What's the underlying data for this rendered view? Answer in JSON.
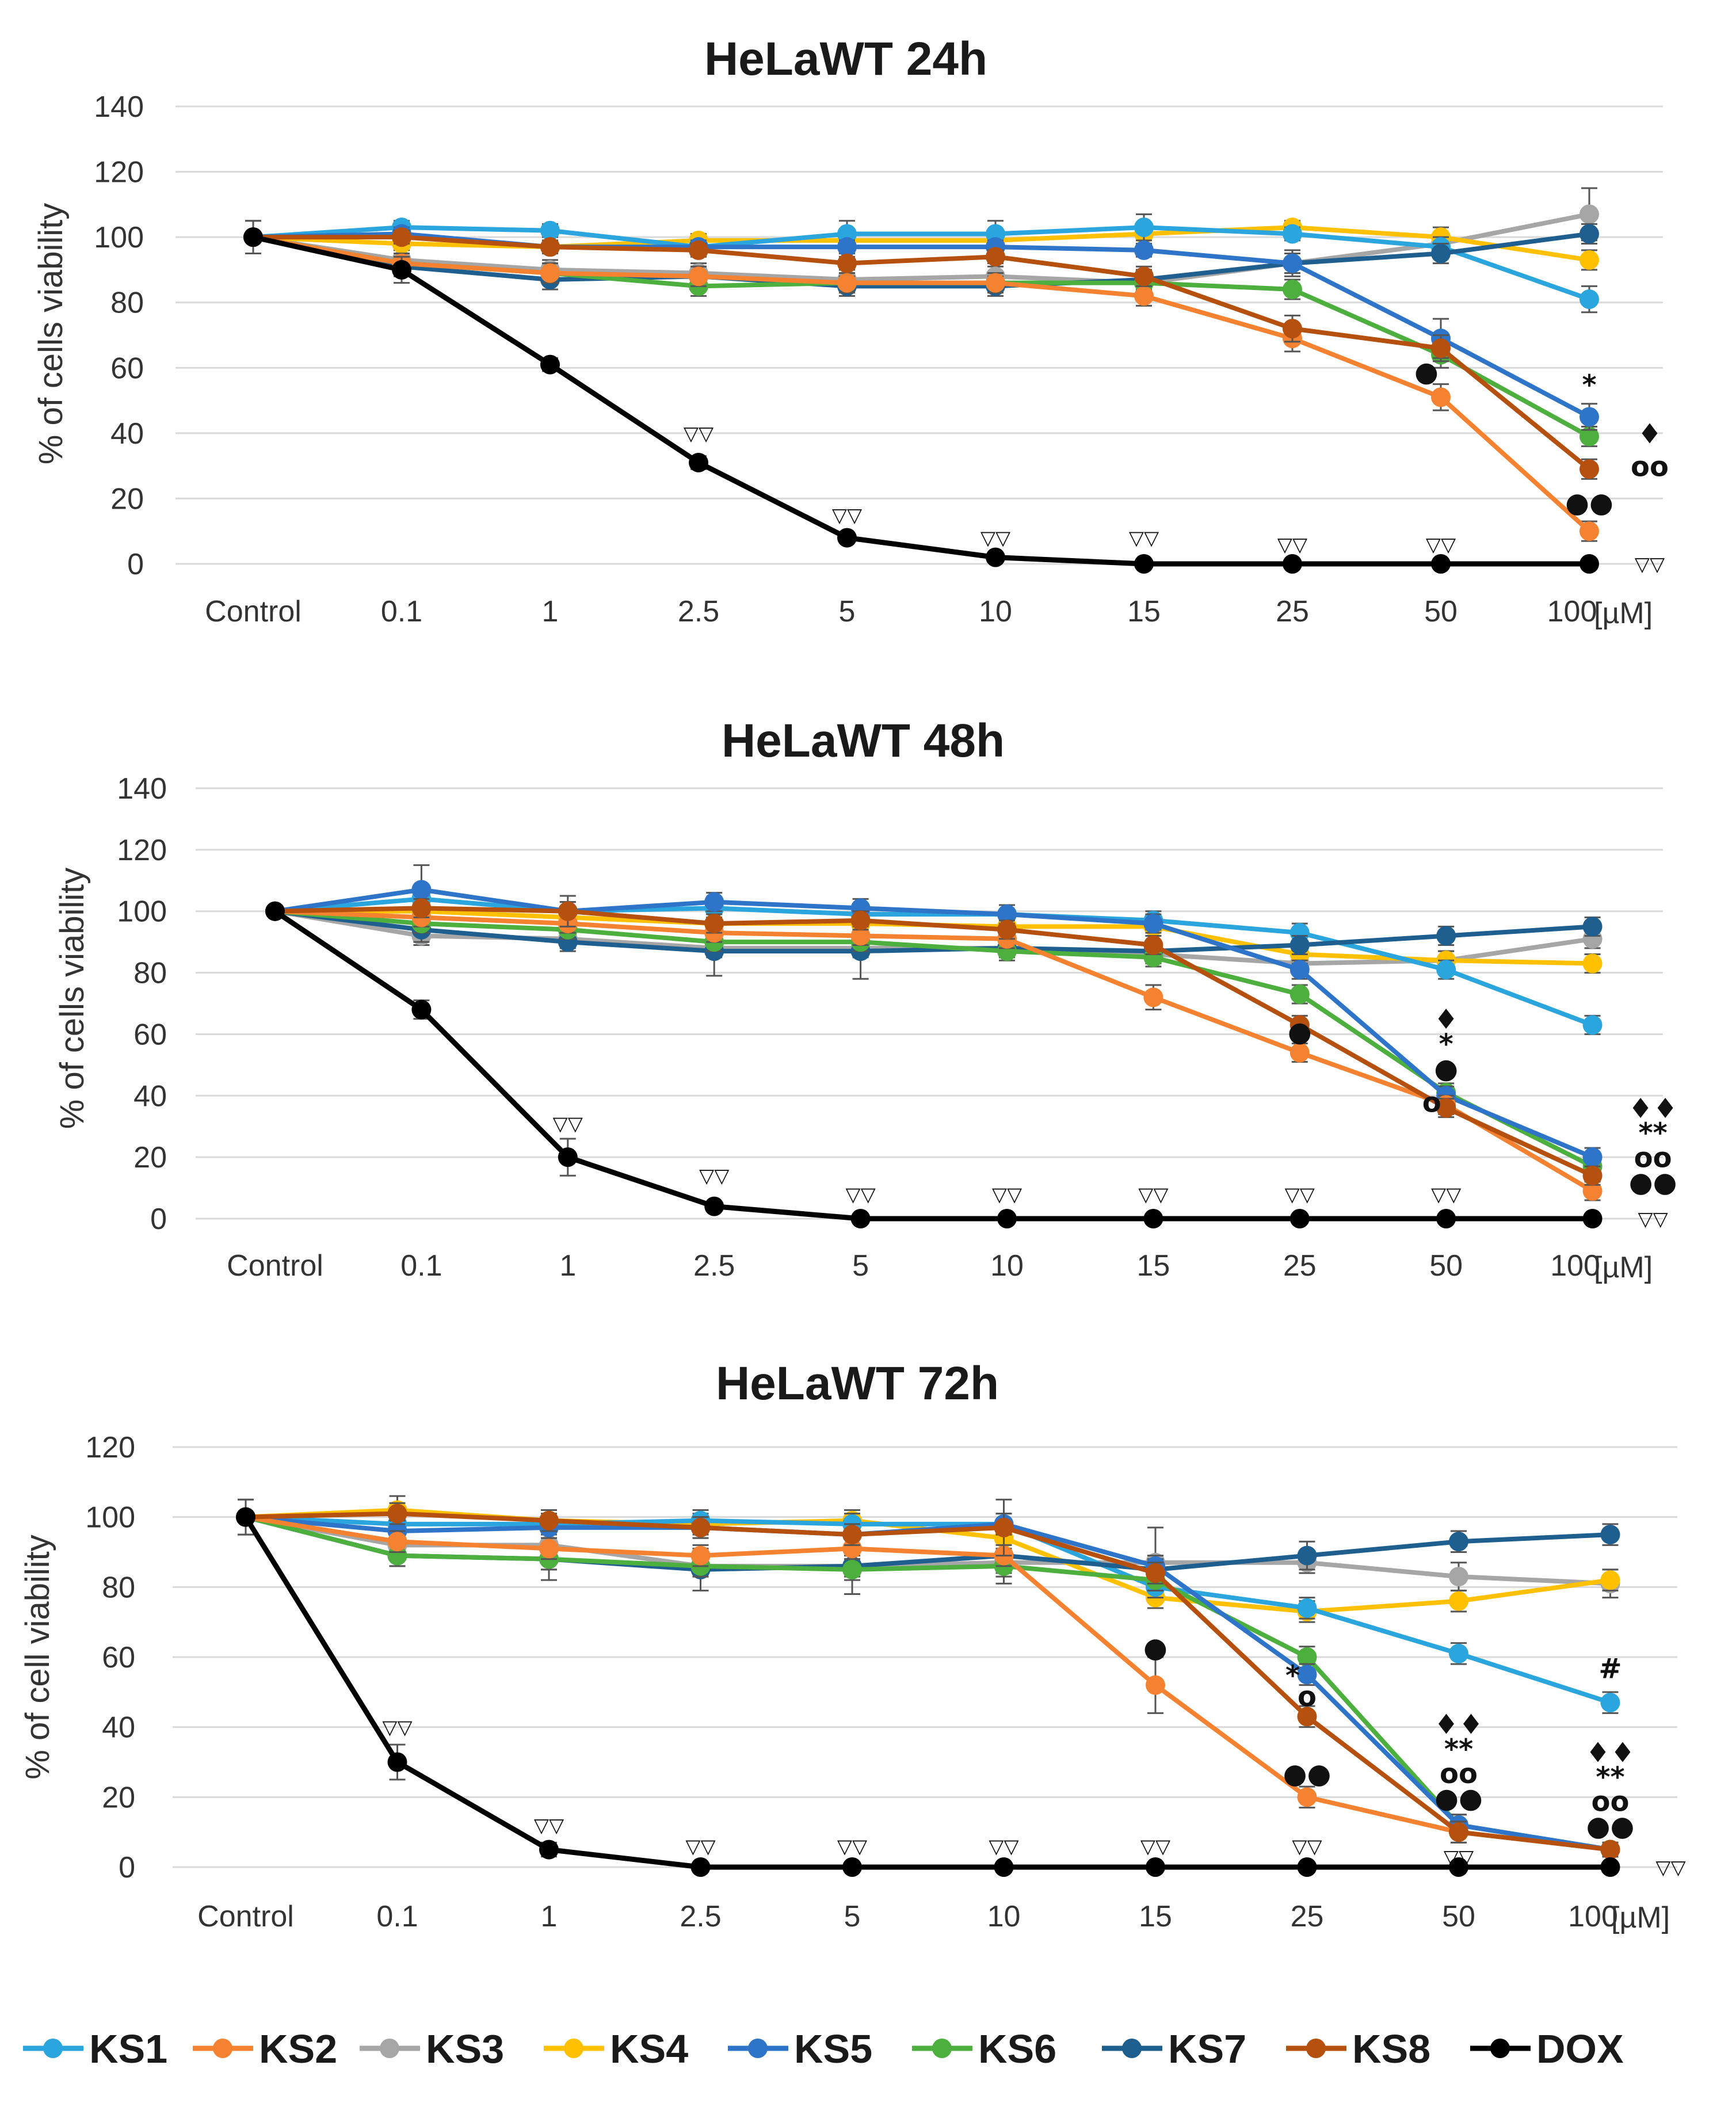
{
  "chart_data": [
    {
      "type": "line",
      "title": "HeLaWT 24h",
      "ylabel": "% of cells viability",
      "xlabel": "",
      "unit_label": "[µM]",
      "categories": [
        "Control",
        "0.1",
        "1",
        "2.5",
        "5",
        "10",
        "15",
        "25",
        "50",
        "100"
      ],
      "yticks": [
        0,
        20,
        40,
        60,
        80,
        100,
        120,
        140
      ],
      "ylim": [
        0,
        140
      ],
      "series": [
        {
          "name": "KS1",
          "values": [
            100,
            103,
            102,
            97,
            101,
            101,
            103,
            101,
            97,
            81
          ],
          "errors": [
            0,
            2,
            2,
            2,
            4,
            4,
            4,
            2,
            3,
            4
          ]
        },
        {
          "name": "KS2",
          "values": [
            100,
            92,
            89,
            88,
            86,
            86,
            82,
            69,
            51,
            10
          ],
          "errors": [
            5,
            3,
            3,
            3,
            3,
            3,
            3,
            4,
            4,
            3
          ]
        },
        {
          "name": "KS3",
          "values": [
            100,
            93,
            90,
            89,
            87,
            88,
            86,
            92,
            98,
            107
          ],
          "errors": [
            0,
            3,
            3,
            3,
            3,
            3,
            3,
            3,
            3,
            8
          ]
        },
        {
          "name": "KS4",
          "values": [
            100,
            98,
            97,
            99,
            99,
            99,
            101,
            103,
            100,
            93
          ],
          "errors": [
            0,
            2,
            2,
            2,
            2,
            2,
            3,
            2,
            3,
            3
          ]
        },
        {
          "name": "KS5",
          "values": [
            100,
            101,
            97,
            97,
            97,
            97,
            96,
            92,
            69,
            45
          ],
          "errors": [
            0,
            2,
            2,
            2,
            2,
            2,
            2,
            3,
            6,
            4
          ]
        },
        {
          "name": "KS6",
          "values": [
            100,
            92,
            89,
            85,
            86,
            86,
            86,
            84,
            64,
            39
          ],
          "errors": [
            0,
            3,
            3,
            3,
            3,
            3,
            3,
            3,
            4,
            3
          ]
        },
        {
          "name": "KS7",
          "values": [
            100,
            91,
            87,
            88,
            85,
            85,
            87,
            92,
            95,
            101
          ],
          "errors": [
            0,
            3,
            3,
            3,
            3,
            3,
            3,
            4,
            3,
            3
          ]
        },
        {
          "name": "KS8",
          "values": [
            100,
            100,
            97,
            96,
            92,
            94,
            88,
            72,
            66,
            29
          ],
          "errors": [
            0,
            2,
            2,
            2,
            2,
            2,
            3,
            4,
            4,
            3
          ]
        },
        {
          "name": "DOX",
          "values": [
            100,
            90,
            61,
            31,
            8,
            2,
            0,
            0,
            0,
            0
          ],
          "errors": [
            5,
            4,
            2,
            2,
            1,
            1,
            0,
            0,
            0,
            0
          ]
        }
      ],
      "annotations": [
        {
          "text": "▽▽",
          "x": "2.5",
          "y": 40,
          "series": "DOX"
        },
        {
          "text": "▽▽",
          "x": "5",
          "y": 15,
          "series": "DOX"
        },
        {
          "text": "▽▽",
          "x": "10",
          "y": 8,
          "series": "DOX"
        },
        {
          "text": "▽▽",
          "x": "15",
          "y": 8,
          "series": "DOX"
        },
        {
          "text": "▽▽",
          "x": "25",
          "y": 6,
          "series": "DOX"
        },
        {
          "text": "▽▽",
          "x": "50",
          "y": 6,
          "series": "DOX"
        },
        {
          "text": "▽▽",
          "x": "100",
          "y": 0,
          "series": "DOX",
          "side": "right"
        },
        {
          "text": "●",
          "x": "50",
          "y": 58,
          "series": "KS2",
          "side": "left-near"
        },
        {
          "text": "*",
          "x": "100",
          "y": 54,
          "series": "KS5"
        },
        {
          "text": "♦",
          "x": "100",
          "y": 39,
          "series": "KS6",
          "side": "right"
        },
        {
          "text": "oo",
          "x": "100",
          "y": 29,
          "series": "KS8",
          "side": "right"
        },
        {
          "text": "●●",
          "x": "100",
          "y": 18,
          "series": "KS2"
        }
      ]
    },
    {
      "type": "line",
      "title": "HeLaWT 48h",
      "ylabel": "% of cells viability",
      "xlabel": "",
      "unit_label": "[µM]",
      "categories": [
        "Control",
        "0.1",
        "1",
        "2.5",
        "5",
        "10",
        "15",
        "25",
        "50",
        "100"
      ],
      "yticks": [
        0,
        20,
        40,
        60,
        80,
        100,
        120,
        140
      ],
      "ylim": [
        0,
        140
      ],
      "series": [
        {
          "name": "KS1",
          "values": [
            100,
            104,
            100,
            101,
            99,
            99,
            97,
            93,
            81,
            63
          ],
          "errors": [
            0,
            3,
            3,
            3,
            3,
            3,
            3,
            3,
            3,
            3
          ]
        },
        {
          "name": "KS2",
          "values": [
            100,
            98,
            96,
            93,
            92,
            91,
            72,
            54,
            37,
            9
          ],
          "errors": [
            0,
            3,
            3,
            3,
            3,
            3,
            4,
            3,
            3,
            3
          ]
        },
        {
          "name": "KS3",
          "values": [
            100,
            92,
            91,
            88,
            88,
            88,
            86,
            83,
            84,
            91
          ],
          "errors": [
            0,
            3,
            3,
            3,
            3,
            3,
            3,
            3,
            3,
            3
          ]
        },
        {
          "name": "KS4",
          "values": [
            100,
            100,
            98,
            96,
            96,
            95,
            95,
            86,
            84,
            83
          ],
          "errors": [
            0,
            3,
            3,
            3,
            3,
            3,
            3,
            3,
            3,
            3
          ]
        },
        {
          "name": "KS5",
          "values": [
            100,
            107,
            100,
            103,
            101,
            99,
            96,
            81,
            40,
            20
          ],
          "errors": [
            0,
            8,
            3,
            3,
            3,
            3,
            3,
            3,
            3,
            3
          ]
        },
        {
          "name": "KS6",
          "values": [
            100,
            96,
            94,
            90,
            90,
            87,
            85,
            73,
            41,
            17
          ],
          "errors": [
            0,
            3,
            3,
            3,
            3,
            3,
            3,
            3,
            3,
            3
          ]
        },
        {
          "name": "KS7",
          "values": [
            100,
            94,
            90,
            87,
            87,
            88,
            87,
            89,
            92,
            95
          ],
          "errors": [
            0,
            4,
            3,
            8,
            9,
            3,
            3,
            3,
            3,
            3
          ]
        },
        {
          "name": "KS8",
          "values": [
            100,
            101,
            100,
            96,
            97,
            94,
            89,
            63,
            36,
            14
          ],
          "errors": [
            0,
            3,
            5,
            3,
            3,
            3,
            3,
            3,
            3,
            3
          ]
        },
        {
          "name": "DOX",
          "values": [
            100,
            68,
            20,
            4,
            0,
            0,
            0,
            0,
            0,
            0
          ],
          "errors": [
            0,
            3,
            6,
            1,
            0,
            0,
            0,
            0,
            0,
            0
          ]
        }
      ],
      "annotations": [
        {
          "text": "▽▽",
          "x": "1",
          "y": 31,
          "series": "DOX"
        },
        {
          "text": "▽▽",
          "x": "2.5",
          "y": 14,
          "series": "DOX"
        },
        {
          "text": "▽▽",
          "x": "5",
          "y": 8,
          "series": "DOX"
        },
        {
          "text": "▽▽",
          "x": "10",
          "y": 8,
          "series": "DOX"
        },
        {
          "text": "▽▽",
          "x": "15",
          "y": 8,
          "series": "DOX"
        },
        {
          "text": "▽▽",
          "x": "25",
          "y": 8,
          "series": "DOX"
        },
        {
          "text": "▽▽",
          "x": "50",
          "y": 8,
          "series": "DOX"
        },
        {
          "text": "▽▽",
          "x": "100",
          "y": 0,
          "series": "DOX",
          "side": "right"
        },
        {
          "text": "●",
          "x": "25",
          "y": 60,
          "series": "KS2"
        },
        {
          "text": "♦",
          "x": "50",
          "y": 64,
          "series": "KS6"
        },
        {
          "text": "*",
          "x": "50",
          "y": 56,
          "series": "KS5"
        },
        {
          "text": "●",
          "x": "50",
          "y": 48,
          "series": "KS2"
        },
        {
          "text": "o",
          "x": "50",
          "y": 37,
          "series": "KS8",
          "side": "left-near"
        },
        {
          "text": "♦♦",
          "x": "100",
          "y": 35,
          "series": "KS6",
          "side": "right"
        },
        {
          "text": "**",
          "x": "100",
          "y": 27,
          "series": "KS5",
          "side": "right"
        },
        {
          "text": "oo",
          "x": "100",
          "y": 19,
          "series": "KS8",
          "side": "right"
        },
        {
          "text": "●●",
          "x": "100",
          "y": 11,
          "series": "KS2",
          "side": "right"
        }
      ]
    },
    {
      "type": "line",
      "title": "HeLaWT 72h",
      "ylabel": "% of cell viability",
      "xlabel": "",
      "unit_label": "[µM]",
      "categories": [
        "Control",
        "0.1",
        "1",
        "2.5",
        "5",
        "10",
        "15",
        "25",
        "50",
        "100"
      ],
      "yticks": [
        0,
        20,
        40,
        60,
        80,
        100,
        120
      ],
      "ylim": [
        0,
        120
      ],
      "series": [
        {
          "name": "KS1",
          "values": [
            100,
            98,
            98,
            99,
            98,
            98,
            80,
            74,
            61,
            47
          ],
          "errors": [
            0,
            3,
            3,
            3,
            3,
            3,
            3,
            3,
            3,
            3
          ]
        },
        {
          "name": "KS2",
          "values": [
            100,
            93,
            91,
            89,
            91,
            89,
            52,
            20,
            10,
            5
          ],
          "errors": [
            0,
            3,
            3,
            3,
            3,
            3,
            8,
            3,
            3,
            2
          ]
        },
        {
          "name": "KS3",
          "values": [
            100,
            92,
            92,
            86,
            86,
            87,
            87,
            87,
            83,
            81
          ],
          "errors": [
            0,
            3,
            10,
            3,
            3,
            3,
            10,
            3,
            4,
            4
          ]
        },
        {
          "name": "KS4",
          "values": [
            100,
            102,
            99,
            98,
            99,
            94,
            77,
            73,
            76,
            82
          ],
          "errors": [
            0,
            4,
            3,
            3,
            3,
            3,
            3,
            3,
            3,
            3
          ]
        },
        {
          "name": "KS5",
          "values": [
            100,
            96,
            97,
            97,
            95,
            98,
            86,
            55,
            12,
            5
          ],
          "errors": [
            0,
            3,
            3,
            3,
            3,
            3,
            3,
            3,
            3,
            2
          ]
        },
        {
          "name": "KS6",
          "values": [
            100,
            89,
            88,
            86,
            85,
            86,
            82,
            60,
            12,
            5
          ],
          "errors": [
            0,
            3,
            3,
            3,
            3,
            3,
            3,
            3,
            3,
            2
          ]
        },
        {
          "name": "KS7",
          "values": [
            100,
            89,
            88,
            85,
            86,
            89,
            85,
            89,
            93,
            95
          ],
          "errors": [
            5,
            3,
            3,
            6,
            8,
            8,
            3,
            4,
            3,
            3
          ]
        },
        {
          "name": "KS8",
          "values": [
            100,
            101,
            99,
            97,
            95,
            97,
            84,
            43,
            10,
            5
          ],
          "errors": [
            0,
            3,
            3,
            3,
            3,
            8,
            3,
            3,
            3,
            2
          ]
        },
        {
          "name": "DOX",
          "values": [
            100,
            30,
            5,
            0,
            0,
            0,
            0,
            0,
            0,
            0
          ],
          "errors": [
            5,
            5,
            2,
            0,
            0,
            0,
            0,
            0,
            0,
            0
          ]
        }
      ],
      "annotations": [
        {
          "text": "▽▽",
          "x": "0.1",
          "y": 40,
          "series": "DOX"
        },
        {
          "text": "▽▽",
          "x": "1",
          "y": 12,
          "series": "DOX"
        },
        {
          "text": "▽▽",
          "x": "2.5",
          "y": 6,
          "series": "DOX"
        },
        {
          "text": "▽▽",
          "x": "5",
          "y": 6,
          "series": "DOX"
        },
        {
          "text": "▽▽",
          "x": "10",
          "y": 6,
          "series": "DOX"
        },
        {
          "text": "▽▽",
          "x": "15",
          "y": 6,
          "series": "DOX"
        },
        {
          "text": "▽▽",
          "x": "25",
          "y": 6,
          "series": "DOX"
        },
        {
          "text": "▽▽",
          "x": "50",
          "y": 3,
          "series": "DOX"
        },
        {
          "text": "▽▽",
          "x": "100",
          "y": 0,
          "series": "DOX",
          "side": "right"
        },
        {
          "text": "●",
          "x": "15",
          "y": 62,
          "series": "KS2"
        },
        {
          "text": "*",
          "x": "25",
          "y": 54,
          "series": "KS5",
          "side": "left-near"
        },
        {
          "text": "o",
          "x": "25",
          "y": 48,
          "series": "KS8"
        },
        {
          "text": "●●",
          "x": "25",
          "y": 26,
          "series": "KS2"
        },
        {
          "text": "♦♦",
          "x": "50",
          "y": 40,
          "series": "KS6"
        },
        {
          "text": "**",
          "x": "50",
          "y": 33,
          "series": "KS5"
        },
        {
          "text": "oo",
          "x": "50",
          "y": 26,
          "series": "KS8"
        },
        {
          "text": "●●",
          "x": "50",
          "y": 19,
          "series": "KS2"
        },
        {
          "text": "#",
          "x": "100",
          "y": 56,
          "series": "KS1"
        },
        {
          "text": "♦♦",
          "x": "100",
          "y": 32,
          "series": "KS6"
        },
        {
          "text": "**",
          "x": "100",
          "y": 25,
          "series": "KS5"
        },
        {
          "text": "oo",
          "x": "100",
          "y": 18,
          "series": "KS8"
        },
        {
          "text": "●●",
          "x": "100",
          "y": 11,
          "series": "KS2"
        }
      ]
    }
  ],
  "legend": {
    "position": "bottom",
    "items": [
      {
        "name": "KS1",
        "color": "#2aa5dd"
      },
      {
        "name": "KS2",
        "color": "#f58231"
      },
      {
        "name": "KS3",
        "color": "#a6a6a6"
      },
      {
        "name": "KS4",
        "color": "#ffc000"
      },
      {
        "name": "KS5",
        "color": "#2e75c9"
      },
      {
        "name": "KS6",
        "color": "#4caf3e"
      },
      {
        "name": "KS7",
        "color": "#1f5f8f"
      },
      {
        "name": "KS8",
        "color": "#b5500f"
      },
      {
        "name": "DOX",
        "color": "#000000"
      }
    ]
  }
}
